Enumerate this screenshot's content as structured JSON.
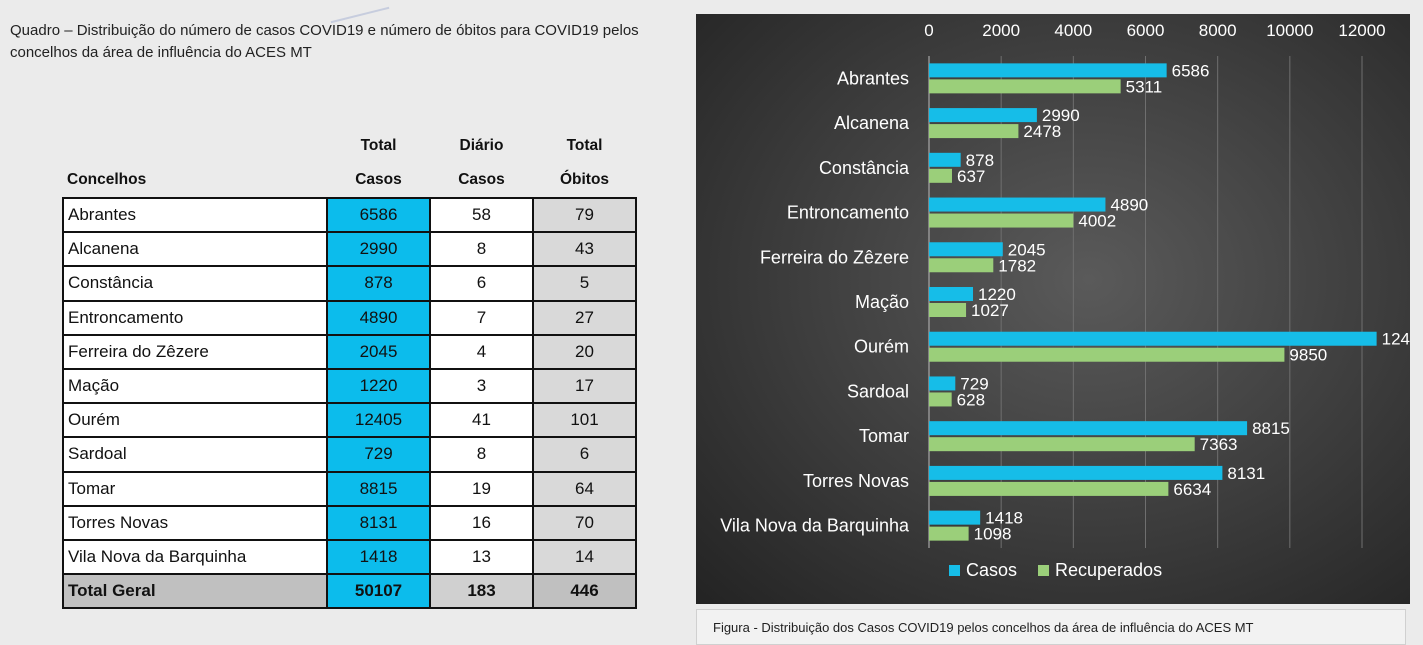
{
  "quadro_title": "Quadro – Distribuição do número de casos COVID19 e número de óbitos para COVID19 pelos concelhos da área de influência do ACES MT",
  "table": {
    "headers": {
      "concelhos": "Concelhos",
      "total_casos_1": "Total",
      "total_casos_2": "Casos",
      "diario_casos_1": "Diário",
      "diario_casos_2": "Casos",
      "total_obitos_1": "Total",
      "total_obitos_2": "Óbitos"
    },
    "rows": [
      {
        "concelho": "Abrantes",
        "total_casos": "6586",
        "diario_casos": "58",
        "total_obitos": "79"
      },
      {
        "concelho": "Alcanena",
        "total_casos": "2990",
        "diario_casos": "8",
        "total_obitos": "43"
      },
      {
        "concelho": "Constância",
        "total_casos": "878",
        "diario_casos": "6",
        "total_obitos": "5"
      },
      {
        "concelho": "Entroncamento",
        "total_casos": "4890",
        "diario_casos": "7",
        "total_obitos": "27"
      },
      {
        "concelho": "Ferreira do Zêzere",
        "total_casos": "2045",
        "diario_casos": "4",
        "total_obitos": "20"
      },
      {
        "concelho": "Mação",
        "total_casos": "1220",
        "diario_casos": "3",
        "total_obitos": "17"
      },
      {
        "concelho": "Ourém",
        "total_casos": "12405",
        "diario_casos": "41",
        "total_obitos": "101"
      },
      {
        "concelho": "Sardoal",
        "total_casos": "729",
        "diario_casos": "8",
        "total_obitos": "6"
      },
      {
        "concelho": "Tomar",
        "total_casos": "8815",
        "diario_casos": "19",
        "total_obitos": "64"
      },
      {
        "concelho": "Torres Novas",
        "total_casos": "8131",
        "diario_casos": "16",
        "total_obitos": "70"
      },
      {
        "concelho": "Vila Nova da Barquinha",
        "total_casos": "1418",
        "diario_casos": "13",
        "total_obitos": "14"
      }
    ],
    "total": {
      "concelho": "Total Geral",
      "total_casos": "50107",
      "diario_casos": "183",
      "total_obitos": "446"
    }
  },
  "chart_data": {
    "type": "bar",
    "orientation": "horizontal",
    "categories": [
      "Abrantes",
      "Alcanena",
      "Constância",
      "Entroncamento",
      "Ferreira do Zêzere",
      "Mação",
      "Ourém",
      "Sardoal",
      "Tomar",
      "Torres Novas",
      "Vila Nova da Barquinha"
    ],
    "series": [
      {
        "name": "Casos",
        "values": [
          6586,
          2990,
          878,
          4890,
          2045,
          1220,
          12405,
          729,
          8815,
          8131,
          1418
        ],
        "color": "#16bde8"
      },
      {
        "name": "Recuperados",
        "values": [
          5311,
          2478,
          637,
          4002,
          1782,
          1027,
          9850,
          628,
          7363,
          6634,
          1098
        ],
        "color": "#9bcf7a"
      }
    ],
    "x_ticks": [
      "0",
      "2000",
      "4000",
      "6000",
      "8000",
      "10000",
      "12000"
    ],
    "xlim": [
      0,
      12000
    ],
    "x_axis_position": "top",
    "grid": true,
    "legend_position": "bottom",
    "data_labels": true,
    "background": "#3c3c3c",
    "label_color": "#ffffff"
  },
  "caption": "Figura -  Distribuição dos Casos COVID19 pelos concelhos da área de influência do ACES MT"
}
